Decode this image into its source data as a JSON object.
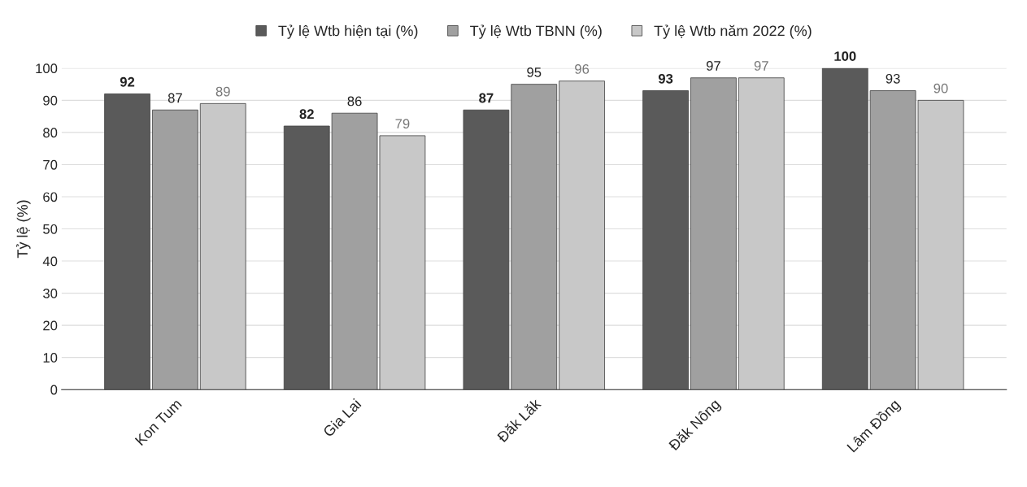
{
  "chart_data": {
    "type": "bar",
    "ylabel": "Tỷ lệ (%)",
    "categories": [
      "Kon Tum",
      "Gia Lai",
      "Đăk Lăk",
      "Đăk Nông",
      "Lâm Đồng"
    ],
    "series": [
      {
        "name": "Tỷ lệ Wtb hiện tại (%)",
        "color": "#5a5a5a",
        "values": [
          92,
          82,
          87,
          93,
          100
        ]
      },
      {
        "name": "Tỷ lệ Wtb TBNN (%)",
        "color": "#a0a0a0",
        "values": [
          87,
          86,
          95,
          97,
          93
        ]
      },
      {
        "name": "Tỷ lệ Wtb năm 2022 (%)",
        "color": "#c8c8c8",
        "values": [
          89,
          79,
          96,
          97,
          90
        ]
      }
    ],
    "ylim": [
      0,
      100
    ],
    "yticks": [
      0,
      10,
      20,
      30,
      40,
      50,
      60,
      70,
      80,
      90,
      100
    ],
    "grid": "y",
    "legend": "top",
    "data_labels": true
  }
}
